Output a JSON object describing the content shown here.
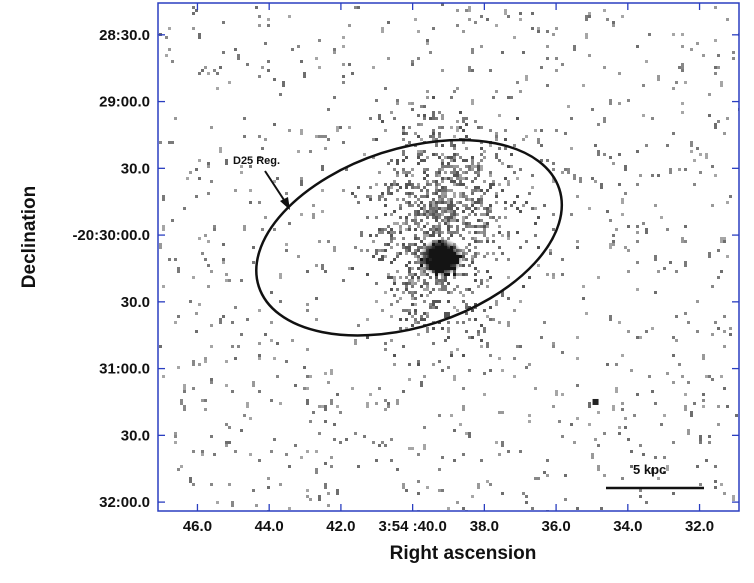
{
  "chart_data": {
    "type": "scatter",
    "title": "",
    "xlabel": "Right ascension",
    "ylabel": "Declination",
    "x_ticks": [
      "46.0",
      "44.0",
      "42.0",
      "3:54 :40.0",
      "38.0",
      "36.0",
      "34.0",
      "32.0"
    ],
    "y_ticks": [
      "28:30.0",
      "29:00.0",
      "30.0",
      "-20:30:00.0",
      "30.0",
      "31:00.0",
      "30.0",
      "32:00.0"
    ],
    "x_tick_values_sec": [
      46,
      44,
      42,
      40,
      38,
      36,
      34,
      32
    ],
    "y_tick_values_arcsec": [
      -90,
      -60,
      -30,
      0,
      30,
      60,
      90,
      120
    ],
    "xlim_sec": [
      47.1,
      30.9
    ],
    "ylim_arcsec": [
      -104.3,
      124.0
    ],
    "grid": false,
    "annotations": [
      {
        "text": "D25 Reg.",
        "arrow": true
      }
    ],
    "ellipse": {
      "label": "D25 Reg.",
      "center_ra_sec": 40.1,
      "center_dec_arcsec": 1.2,
      "semi_major_arcsec": 71,
      "semi_minor_arcsec": 40,
      "position_angle_deg": 18
    },
    "scale_bar": {
      "label": "5 kpc",
      "ra_start_sec": 34.7,
      "ra_end_sec": 32.1,
      "dec_arcsec": 112
    },
    "sources": [
      {
        "ra_sec": 39.2,
        "dec_arcsec": 10,
        "type": "nucleus"
      },
      {
        "ra_sec": 39.5,
        "dec_arcsec": 4,
        "type": "diffuse"
      },
      {
        "ra_sec": 38.9,
        "dec_arcsec": -22,
        "type": "diffuse"
      },
      {
        "ra_sec": 34.9,
        "dec_arcsec": 75,
        "type": "point"
      }
    ],
    "colors": {
      "frame": "#2a3ec0",
      "ellipse": "#111111",
      "pixels": "#777777",
      "nucleus": "#1a1a1a"
    }
  }
}
